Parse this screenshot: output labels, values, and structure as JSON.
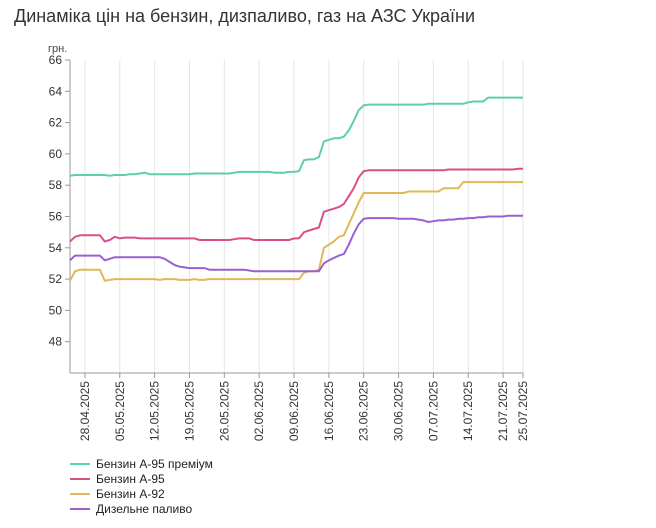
{
  "title": "Динаміка цін на бензин, дизпаливо, газ на АЗС України",
  "chart_data": {
    "type": "line",
    "title": "Динаміка цін на бензин, дизпаливо, газ на АЗС України",
    "unit": "грн.",
    "ylim": [
      46,
      66
    ],
    "yticks": [
      48,
      50,
      52,
      54,
      56,
      58,
      60,
      62,
      64,
      66
    ],
    "grid": "vertical",
    "legend_position": "bottom-left",
    "xticks": [
      "28.04.2025",
      "05.05.2025",
      "12.05.2025",
      "19.05.2025",
      "26.05.2025",
      "02.06.2025",
      "09.06.2025",
      "16.06.2025",
      "23.06.2025",
      "30.06.2025",
      "07.07.2025",
      "14.07.2025",
      "21.07.2025",
      "25.07.2025"
    ],
    "x": [
      "2025-04-25",
      "2025-04-26",
      "2025-04-27",
      "2025-04-28",
      "2025-04-29",
      "2025-04-30",
      "2025-05-01",
      "2025-05-02",
      "2025-05-03",
      "2025-05-04",
      "2025-05-05",
      "2025-05-06",
      "2025-05-07",
      "2025-05-08",
      "2025-05-09",
      "2025-05-10",
      "2025-05-11",
      "2025-05-12",
      "2025-05-13",
      "2025-05-14",
      "2025-05-15",
      "2025-05-16",
      "2025-05-17",
      "2025-05-18",
      "2025-05-19",
      "2025-05-20",
      "2025-05-21",
      "2025-05-22",
      "2025-05-23",
      "2025-05-24",
      "2025-05-25",
      "2025-05-26",
      "2025-05-27",
      "2025-05-28",
      "2025-05-29",
      "2025-05-30",
      "2025-05-31",
      "2025-06-01",
      "2025-06-02",
      "2025-06-03",
      "2025-06-04",
      "2025-06-05",
      "2025-06-06",
      "2025-06-07",
      "2025-06-08",
      "2025-06-09",
      "2025-06-10",
      "2025-06-11",
      "2025-06-12",
      "2025-06-13",
      "2025-06-14",
      "2025-06-15",
      "2025-06-16",
      "2025-06-17",
      "2025-06-18",
      "2025-06-19",
      "2025-06-20",
      "2025-06-21",
      "2025-06-22",
      "2025-06-23",
      "2025-06-24",
      "2025-06-25",
      "2025-06-26",
      "2025-06-27",
      "2025-06-28",
      "2025-06-29",
      "2025-06-30",
      "2025-07-01",
      "2025-07-02",
      "2025-07-03",
      "2025-07-04",
      "2025-07-05",
      "2025-07-06",
      "2025-07-07",
      "2025-07-08",
      "2025-07-09",
      "2025-07-10",
      "2025-07-11",
      "2025-07-12",
      "2025-07-13",
      "2025-07-14",
      "2025-07-15",
      "2025-07-16",
      "2025-07-17",
      "2025-07-18",
      "2025-07-19",
      "2025-07-20",
      "2025-07-21",
      "2025-07-22",
      "2025-07-23",
      "2025-07-24",
      "2025-07-25"
    ],
    "series": [
      {
        "name": "Бензин А-95 преміум",
        "color": "#5fcfa5",
        "values": [
          58.6,
          58.65,
          58.65,
          58.65,
          58.65,
          58.65,
          58.65,
          58.65,
          58.6,
          58.65,
          58.65,
          58.65,
          58.7,
          58.7,
          58.75,
          58.8,
          58.7,
          58.7,
          58.7,
          58.7,
          58.7,
          58.7,
          58.7,
          58.7,
          58.7,
          58.75,
          58.75,
          58.75,
          58.75,
          58.75,
          58.75,
          58.75,
          58.75,
          58.8,
          58.85,
          58.85,
          58.85,
          58.85,
          58.85,
          58.85,
          58.85,
          58.8,
          58.8,
          58.8,
          58.85,
          58.85,
          58.9,
          59.6,
          59.65,
          59.65,
          59.8,
          60.8,
          60.9,
          61.0,
          61.0,
          61.1,
          61.5,
          62.1,
          62.8,
          63.1,
          63.15,
          63.15,
          63.15,
          63.15,
          63.15,
          63.15,
          63.15,
          63.15,
          63.15,
          63.15,
          63.15,
          63.15,
          63.2,
          63.2,
          63.2,
          63.2,
          63.2,
          63.2,
          63.2,
          63.2,
          63.3,
          63.35,
          63.35,
          63.35,
          63.6,
          63.6,
          63.6,
          63.6,
          63.6,
          63.6,
          63.6,
          63.6
        ]
      },
      {
        "name": "Бензин А-95",
        "color": "#d94f8a",
        "values": [
          54.4,
          54.7,
          54.8,
          54.8,
          54.8,
          54.8,
          54.8,
          54.4,
          54.5,
          54.7,
          54.6,
          54.65,
          54.65,
          54.65,
          54.6,
          54.6,
          54.6,
          54.6,
          54.6,
          54.6,
          54.6,
          54.6,
          54.6,
          54.6,
          54.6,
          54.6,
          54.5,
          54.5,
          54.5,
          54.5,
          54.5,
          54.5,
          54.5,
          54.55,
          54.6,
          54.6,
          54.6,
          54.5,
          54.5,
          54.5,
          54.5,
          54.5,
          54.5,
          54.5,
          54.5,
          54.6,
          54.6,
          55.0,
          55.1,
          55.2,
          55.3,
          56.3,
          56.4,
          56.5,
          56.6,
          56.8,
          57.3,
          57.8,
          58.5,
          58.9,
          58.95,
          58.95,
          58.95,
          58.95,
          58.95,
          58.95,
          58.95,
          58.95,
          58.95,
          58.95,
          58.95,
          58.95,
          58.95,
          58.95,
          58.95,
          58.95,
          59.0,
          59.0,
          59.0,
          59.0,
          59.0,
          59.0,
          59.0,
          59.0,
          59.0,
          59.0,
          59.0,
          59.0,
          59.0,
          59.0,
          59.05,
          59.05
        ]
      },
      {
        "name": "Бензин А-92",
        "color": "#e0b85a",
        "values": [
          51.9,
          52.5,
          52.6,
          52.6,
          52.6,
          52.6,
          52.6,
          51.9,
          51.95,
          52.0,
          52.0,
          52.0,
          52.0,
          52.0,
          52.0,
          52.0,
          52.0,
          52.0,
          51.95,
          52.0,
          52.0,
          52.0,
          51.95,
          51.95,
          51.95,
          52.0,
          51.95,
          51.95,
          52.0,
          52.0,
          52.0,
          52.0,
          52.0,
          52.0,
          52.0,
          52.0,
          52.0,
          52.0,
          52.0,
          52.0,
          52.0,
          52.0,
          52.0,
          52.0,
          52.0,
          52.0,
          52.0,
          52.4,
          52.5,
          52.5,
          52.6,
          54.0,
          54.2,
          54.4,
          54.7,
          54.8,
          55.5,
          56.2,
          56.9,
          57.5,
          57.5,
          57.5,
          57.5,
          57.5,
          57.5,
          57.5,
          57.5,
          57.5,
          57.6,
          57.6,
          57.6,
          57.6,
          57.6,
          57.6,
          57.6,
          57.8,
          57.8,
          57.8,
          57.8,
          58.2,
          58.2,
          58.2,
          58.2,
          58.2,
          58.2,
          58.2,
          58.2,
          58.2,
          58.2,
          58.2,
          58.2,
          58.2
        ]
      },
      {
        "name": "Дизельне паливо",
        "color": "#9a5fd6",
        "values": [
          53.2,
          53.5,
          53.5,
          53.5,
          53.5,
          53.5,
          53.5,
          53.2,
          53.3,
          53.4,
          53.4,
          53.4,
          53.4,
          53.4,
          53.4,
          53.4,
          53.4,
          53.4,
          53.4,
          53.3,
          53.1,
          52.9,
          52.8,
          52.75,
          52.7,
          52.7,
          52.7,
          52.7,
          52.6,
          52.6,
          52.6,
          52.6,
          52.6,
          52.6,
          52.6,
          52.6,
          52.55,
          52.5,
          52.5,
          52.5,
          52.5,
          52.5,
          52.5,
          52.5,
          52.5,
          52.5,
          52.5,
          52.5,
          52.5,
          52.5,
          52.5,
          53.0,
          53.2,
          53.35,
          53.5,
          53.6,
          54.2,
          54.9,
          55.5,
          55.85,
          55.9,
          55.9,
          55.9,
          55.9,
          55.9,
          55.9,
          55.85,
          55.85,
          55.85,
          55.85,
          55.8,
          55.75,
          55.65,
          55.7,
          55.75,
          55.75,
          55.8,
          55.8,
          55.85,
          55.85,
          55.9,
          55.9,
          55.95,
          55.95,
          56.0,
          56.0,
          56.0,
          56.0,
          56.05,
          56.05,
          56.05,
          56.05
        ]
      }
    ]
  }
}
